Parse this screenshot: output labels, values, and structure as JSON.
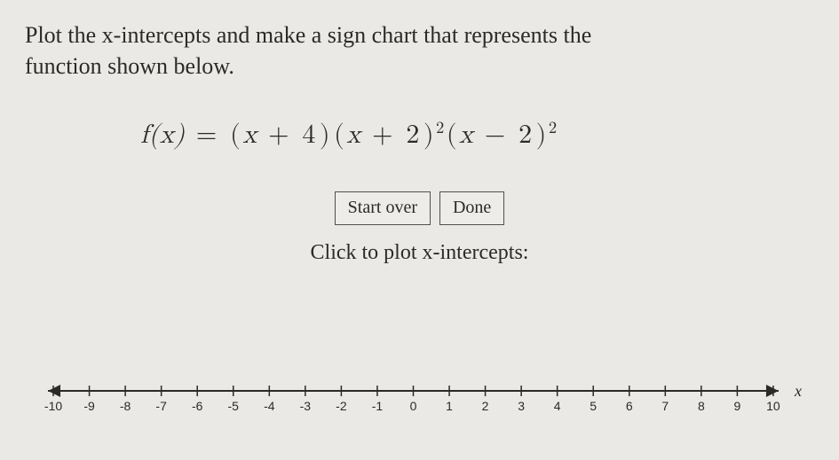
{
  "prompt": {
    "line1": "Plot the x-intercepts and make a sign chart that represents the",
    "line2": "function shown below."
  },
  "formula": {
    "fn": "f",
    "var": "x",
    "text_fallback": "f(x) = (x + 4)(x + 2)²(x − 2)²",
    "parts": {
      "lhs_open": "f(x)",
      "eq": " = ",
      "t1_open": "(",
      "t1_var": "x",
      "t1_op": " + ",
      "t1_num": "4",
      "t1_close": ")",
      "t2_open": "(",
      "t2_var": "x",
      "t2_op": " + ",
      "t2_num": "2",
      "t2_close": ")",
      "t2_exp": "2",
      "t3_open": "(",
      "t3_var": "x",
      "t3_op": " − ",
      "t3_num": "2",
      "t3_close": ")",
      "t3_exp": "2"
    }
  },
  "buttons": {
    "start_over": "Start over",
    "done": "Done"
  },
  "instruction": "Click to plot x-intercepts:",
  "axis": {
    "label": "x",
    "min": -10,
    "max": 10,
    "tick_step": 1,
    "tick_labels": [
      "-10",
      "-9",
      "-8",
      "-7",
      "-6",
      "-5",
      "-4",
      "-3",
      "-2",
      "-1",
      "0",
      "1",
      "2",
      "3",
      "4",
      "5",
      "6",
      "7",
      "8",
      "9",
      "10"
    ],
    "axis_color": "#2a2a28",
    "line_width": 2,
    "label_fontsize": 14,
    "label_font": "Arial"
  },
  "colors": {
    "background": "#ebe9e6",
    "text": "#2a2a28",
    "button_border": "#4f4f4d",
    "button_bg": "#edece9"
  },
  "typography": {
    "body_font": "Georgia",
    "body_size_pt": 20,
    "formula_size_pt": 22
  }
}
